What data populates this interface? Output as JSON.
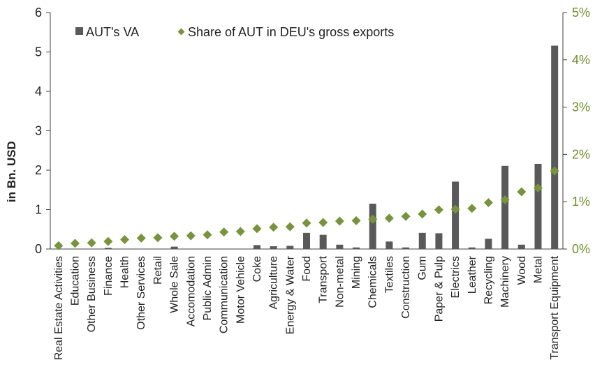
{
  "colors": {
    "bar": "#595959",
    "marker": "#77933c",
    "right_axis": "#6f8f2a",
    "axis": "#404040"
  },
  "chart_data": {
    "type": "bar",
    "ylabel": "in Bn. USD",
    "ylim": [
      0,
      6
    ],
    "y_ticks": [
      "0",
      "1",
      "2",
      "3",
      "4",
      "5",
      "6"
    ],
    "y2lim": [
      0,
      5
    ],
    "y2_ticks": [
      "0%",
      "1%",
      "2%",
      "3%",
      "4%",
      "5%"
    ],
    "legend_position": "top-left",
    "categories": [
      "Real Estate Activities",
      "Education",
      "Other Business",
      "Finance",
      "Health",
      "Other Services",
      "Retail",
      "Whole Sale",
      "Accomodation",
      "Public Admin",
      "Communication",
      "Motor Vehicle",
      "Coke",
      "Agriculture",
      "Energy & Water",
      "Food",
      "Transport",
      "Non-metal",
      "Mining",
      "Chemicals",
      "Textiles",
      "Construction",
      "Gum",
      "Paper & Pulp",
      "Electrics",
      "Leather",
      "Recycling",
      "Machinery",
      "Wood",
      "Metal",
      "Transport Equipment"
    ],
    "series": [
      {
        "name": "AUT's VA",
        "type": "bar",
        "axis": "left",
        "values": [
          0.01,
          0.01,
          0.0,
          0.03,
          0.01,
          0.01,
          0.01,
          0.06,
          0.01,
          0.01,
          0.01,
          0.01,
          0.1,
          0.07,
          0.08,
          0.41,
          0.36,
          0.11,
          0.04,
          1.15,
          0.19,
          0.04,
          0.41,
          0.4,
          1.71,
          0.04,
          0.26,
          2.11,
          0.11,
          2.16,
          5.16
        ]
      },
      {
        "name": "Share of AUT in DEU's gross exports",
        "type": "scatter",
        "axis": "right",
        "unit": "%",
        "values": [
          0.07,
          0.12,
          0.13,
          0.16,
          0.2,
          0.23,
          0.24,
          0.27,
          0.28,
          0.3,
          0.36,
          0.37,
          0.43,
          0.46,
          0.47,
          0.55,
          0.56,
          0.59,
          0.6,
          0.63,
          0.65,
          0.69,
          0.74,
          0.83,
          0.84,
          0.86,
          0.98,
          1.04,
          1.21,
          1.29,
          1.65
        ]
      }
    ]
  }
}
